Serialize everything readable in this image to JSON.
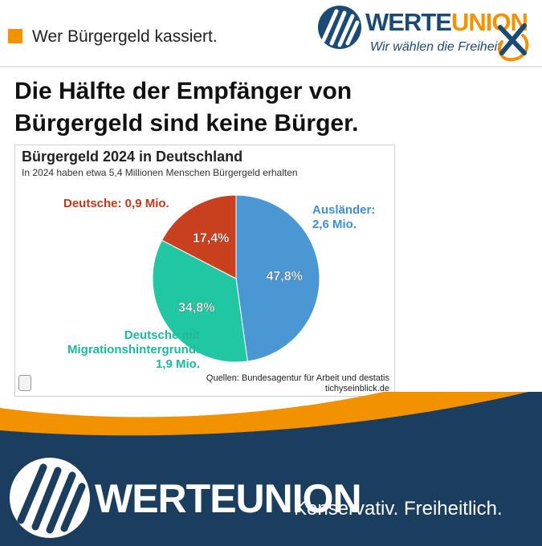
{
  "header": {
    "tag_text": "Wer Bürgergeld kassiert.",
    "brand_name_part1": "WERTE",
    "brand_name_part2": "UNION",
    "brand_slogan": "Wir wählen die Freiheit"
  },
  "headline": {
    "line1": "Die Hälfte der Empfänger von",
    "line2": "Bürgergeld sind keine Bürger."
  },
  "chart_data": {
    "type": "pie",
    "title": "Bürgergeld 2024 in Deutschland",
    "subtitle": "In 2024 haben etwa 5,4 Millionen Menschen Bürgergeld erhalten",
    "slices": [
      {
        "label_lines": [
          "Ausländer:",
          "2,6 Mio."
        ],
        "value": 47.8,
        "value_label": "47,8%",
        "color": "#4a97d3"
      },
      {
        "label_lines": [
          "Deutsche mit",
          "Migrationshintergrund:",
          "1,9 Mio."
        ],
        "value": 34.8,
        "value_label": "34,8%",
        "color": "#21c6a3"
      },
      {
        "label_lines": [
          "Deutsche: 0,9 Mio."
        ],
        "value": 17.4,
        "value_label": "17,4%",
        "color": "#c8401d"
      }
    ],
    "sources_line1": "Quellen: Bundesagentur für Arbeit und destatis",
    "sources_line2": "tichyseinblick.de"
  },
  "footer": {
    "brand_name_part1": "WERTE",
    "brand_name_part2": "UNION",
    "slogan": "Konservativ. Freiheitlich."
  },
  "colors": {
    "orange": "#f39200",
    "navy": "#1b3e5e",
    "brand_blue": "#1b4a74"
  }
}
